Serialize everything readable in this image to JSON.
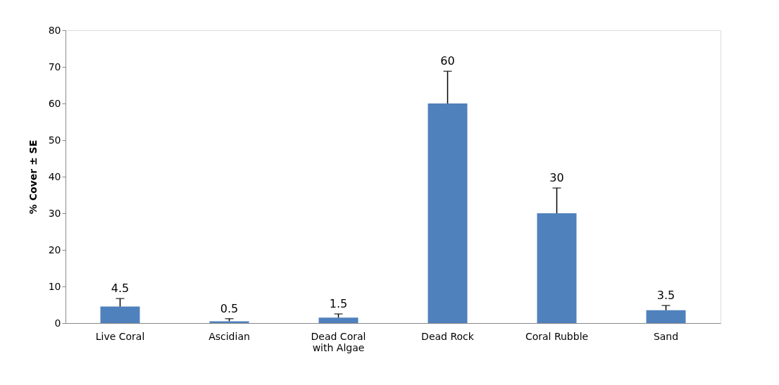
{
  "chart_data": {
    "type": "bar",
    "ylabel": "% Cover ± SE",
    "categories": [
      "Live Coral",
      "Ascidian",
      "Dead Coral with Algae",
      "Dead Rock",
      "Coral Rubble",
      "Sand"
    ],
    "values": [
      4.5,
      0.5,
      1.5,
      60,
      30,
      3.5
    ],
    "errors": [
      [
        4.5,
        6.7
      ],
      [
        0.5,
        1.2
      ],
      [
        1.5,
        2.5
      ],
      [
        60,
        68.8
      ],
      [
        30,
        36.9
      ],
      [
        3.5,
        4.8
      ]
    ],
    "color": "#4f81bd",
    "ylim": [
      0,
      80
    ],
    "yticks": [
      0,
      10,
      20,
      30,
      40,
      50,
      60,
      70,
      80
    ],
    "grid": false,
    "data_labels": true
  }
}
